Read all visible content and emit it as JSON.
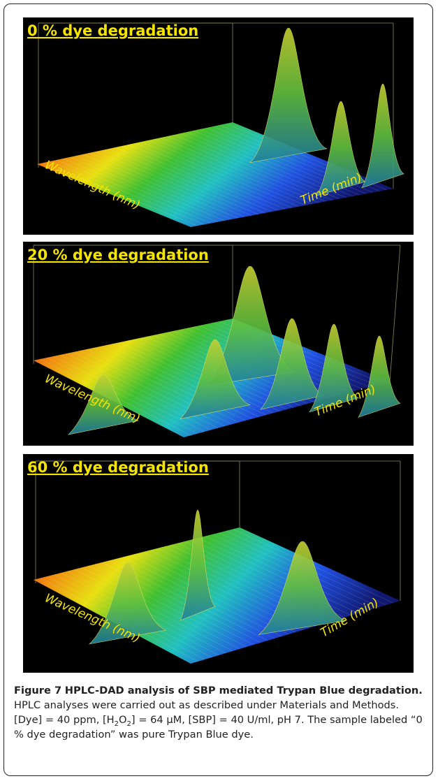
{
  "panels": [
    {
      "title": "0 % dye degradation",
      "x_label": "Wavelength (nm)",
      "y_label": "Time (min)"
    },
    {
      "title": "20 % dye degradation",
      "x_label": "Wavelength (nm)",
      "y_label": "Time (min)"
    },
    {
      "title": "60 % dye degradation",
      "x_label": "Wavelength (nm)",
      "y_label": "Time (min)"
    }
  ],
  "caption": {
    "label": "Figure 7",
    "title": "HPLC-DAD analysis of SBP mediated Trypan Blue degradation.",
    "text": [
      "HPLC analyses were carried out as described under Materials and Methods. [Dye] = 40 ppm, [H",
      "2",
      "O",
      "2",
      "] = 64 μM, [SBP] = 40 U/ml, pH 7. The sample labeled “0 % dye degradation” was pure Trypan Blue dye."
    ]
  }
}
